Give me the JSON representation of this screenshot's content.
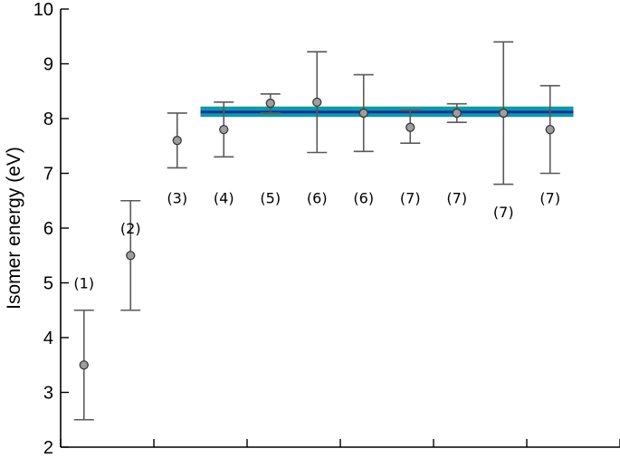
{
  "chart_data": {
    "type": "scatter",
    "title": "",
    "xlabel": "",
    "ylabel": "Isomer energy (eV)",
    "ylim": [
      2,
      10
    ],
    "yticks": [
      2,
      3,
      4,
      5,
      6,
      7,
      8,
      9,
      10
    ],
    "xlim": [
      0.5,
      12.5
    ],
    "xticks": [
      0.5,
      2.5,
      4.5,
      6.5,
      8.5,
      10.5,
      12.5
    ],
    "grid": false,
    "legend": "none",
    "points": [
      {
        "x": 1,
        "y": 3.5,
        "err_low": 2.5,
        "err_high": 4.5,
        "label": "(1)"
      },
      {
        "x": 2,
        "y": 5.5,
        "err_low": 4.5,
        "err_high": 6.5,
        "label": "(2)"
      },
      {
        "x": 3,
        "y": 7.6,
        "err_low": 7.1,
        "err_high": 8.1,
        "label": "(3)"
      },
      {
        "x": 4,
        "y": 7.8,
        "err_low": 7.3,
        "err_high": 8.3,
        "label": "(4)"
      },
      {
        "x": 5,
        "y": 8.28,
        "err_low": 8.1,
        "err_high": 8.45,
        "label": "(5)"
      },
      {
        "x": 6,
        "y": 8.3,
        "err_low": 7.38,
        "err_high": 9.22,
        "label": "(6)"
      },
      {
        "x": 7,
        "y": 8.1,
        "err_low": 7.4,
        "err_high": 8.8,
        "label": "(6)"
      },
      {
        "x": 8,
        "y": 7.84,
        "err_low": 7.55,
        "err_high": 8.15,
        "label": "(7)"
      },
      {
        "x": 9,
        "y": 8.1,
        "err_low": 7.93,
        "err_high": 8.27,
        "label": "(7)"
      },
      {
        "x": 10,
        "y": 8.1,
        "err_low": 6.8,
        "err_high": 9.4,
        "label": "(7)"
      },
      {
        "x": 11,
        "y": 7.8,
        "err_low": 7.0,
        "err_high": 8.6,
        "label": "(7)"
      }
    ],
    "label_y": [
      5.0,
      6.0,
      6.55,
      6.55,
      6.55,
      6.55,
      6.55,
      6.55,
      6.55,
      6.3,
      6.55
    ],
    "band": {
      "x_start": 3.5,
      "x_end": 11.5,
      "center": 8.12,
      "low": 8.03,
      "high": 8.22
    },
    "colors": {
      "point_fill": "#9e9e9e",
      "point_stroke": "#3a3a3a",
      "errorbar": "#5a5a5a",
      "band_fill": "#0f9aa0",
      "band_line": "#1a2fa8",
      "axis": "#000000"
    }
  }
}
